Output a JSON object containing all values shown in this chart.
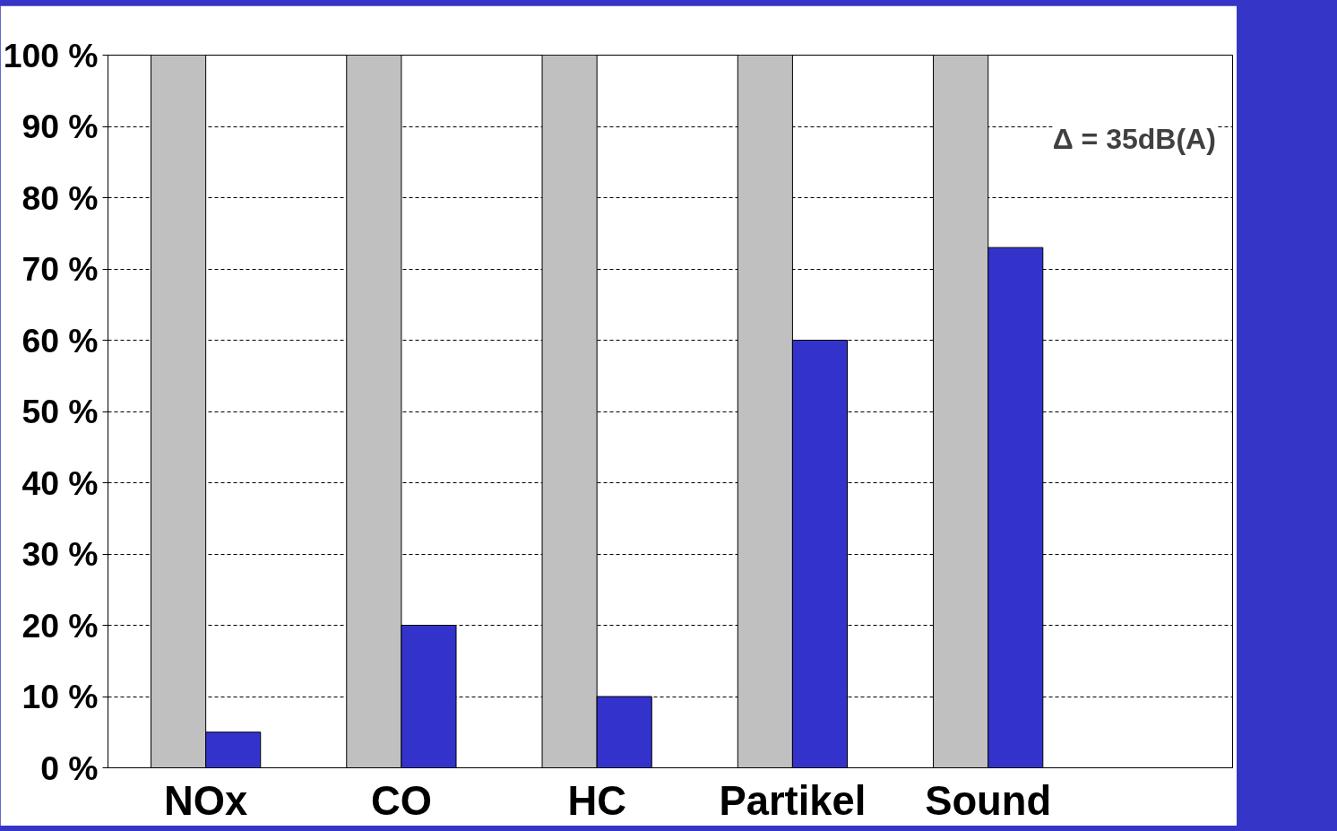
{
  "chart_data": {
    "type": "bar",
    "categories": [
      "NOx",
      "CO",
      "HC",
      "Partikel",
      "Sound"
    ],
    "series": [
      {
        "color": "#c0c0c0",
        "values": [
          100,
          100,
          100,
          100,
          100
        ]
      },
      {
        "color": "#3333cc",
        "values": [
          5,
          20,
          10,
          60,
          73
        ]
      }
    ],
    "ylim": [
      0,
      100
    ],
    "yticks": [
      {
        "value": 0,
        "label": "0 %"
      },
      {
        "value": 10,
        "label": "10 %"
      },
      {
        "value": 20,
        "label": "20 %"
      },
      {
        "value": 30,
        "label": "30 %"
      },
      {
        "value": 40,
        "label": "40 %"
      },
      {
        "value": 50,
        "label": "50 %"
      },
      {
        "value": 60,
        "label": "60 %"
      },
      {
        "value": 70,
        "label": "70 %"
      },
      {
        "value": 80,
        "label": "80 %"
      },
      {
        "value": 90,
        "label": "90 %"
      },
      {
        "value": 100,
        "label": "100 %"
      }
    ],
    "grid": "y",
    "annotations": [
      "Δ = 35dB(A)"
    ]
  }
}
